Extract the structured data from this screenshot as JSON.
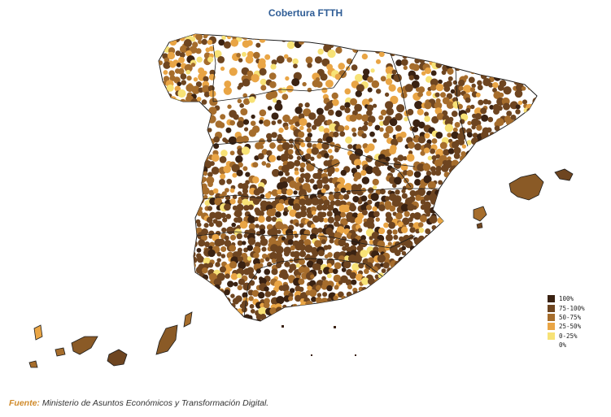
{
  "title": "Cobertura FTTH",
  "legend": [
    {
      "label": "100%",
      "color": "#3a2212"
    },
    {
      "label": "75-100%",
      "color": "#6e4520"
    },
    {
      "label": "50-75%",
      "color": "#a66d2c"
    },
    {
      "label": "25-50%",
      "color": "#e9a545"
    },
    {
      "label": "0-25%",
      "color": "#f7e276"
    },
    {
      "label": "0%",
      "color": "#ffffff"
    }
  ],
  "source": {
    "lead": "Fuente:",
    "text": "Ministerio de Asuntos Económicos y Transformación Digital."
  },
  "colors": {
    "title": "#2f5d96",
    "border": "#1c1c1c",
    "source_lead": "#d08a2a"
  }
}
